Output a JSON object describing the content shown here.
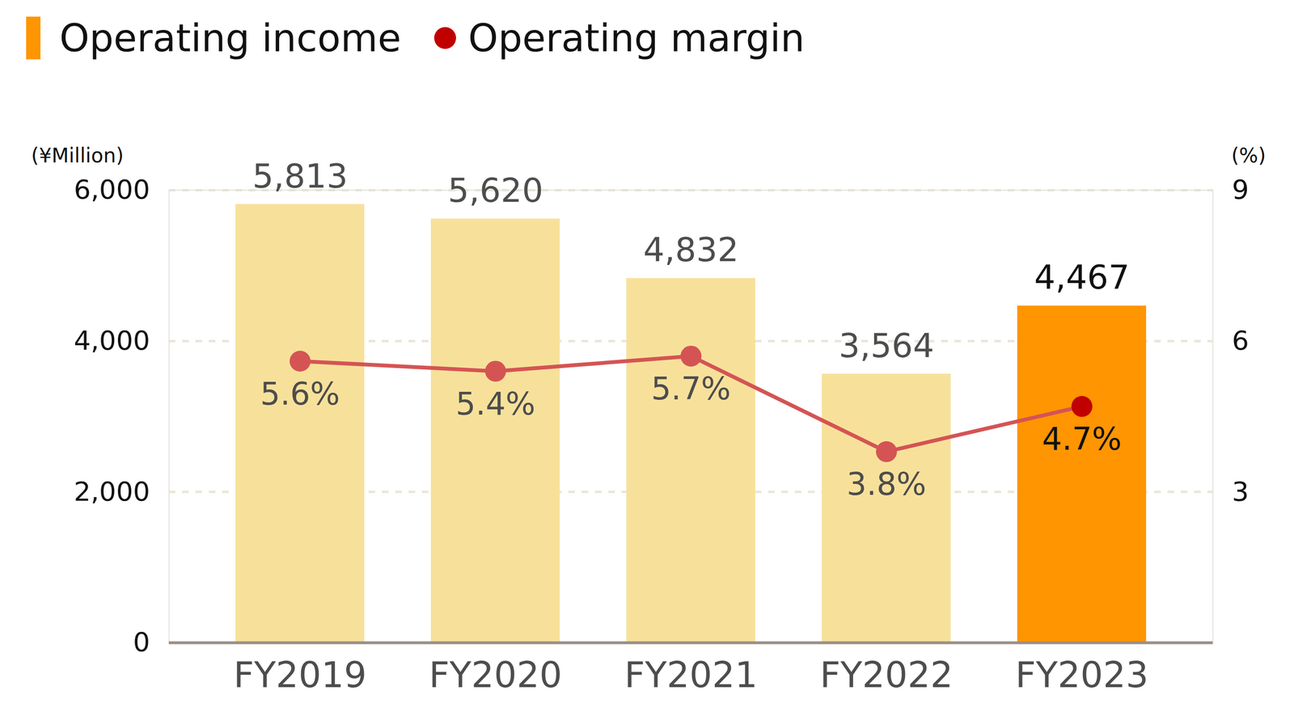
{
  "chart_data": {
    "type": "bar",
    "categories": [
      "FY2019",
      "FY2020",
      "FY2021",
      "FY2022",
      "FY2023"
    ],
    "series": [
      {
        "name": "Operating income",
        "type": "bar",
        "color": "#FF9500",
        "colors": [
          "#F7E19A",
          "#F7E19A",
          "#F7E19A",
          "#F7E19A",
          "#FF9500"
        ],
        "values": [
          5813,
          5620,
          4832,
          3564,
          4467
        ],
        "value_labels": [
          "5,813",
          "5,620",
          "4,832",
          "3,564",
          "4,467"
        ]
      },
      {
        "name": "Operating margin",
        "type": "line",
        "axis": "y2",
        "color": "#D45454",
        "colors": [
          "#D45454",
          "#D45454",
          "#D45454",
          "#D45454",
          "#C00000"
        ],
        "marker": "circle",
        "values": [
          5.6,
          5.4,
          5.7,
          3.8,
          4.7
        ],
        "value_labels": [
          "5.6%",
          "5.4%",
          "5.7%",
          "3.8%",
          "4.7%"
        ]
      }
    ],
    "y_label": "(¥Million)",
    "y2_label": "(%)",
    "ylim": [
      0,
      6000
    ],
    "yticks": [
      0,
      {
        "value": 2000,
        "label": "2,000"
      },
      {
        "value": 4000,
        "label": "4,000"
      },
      {
        "value": 6000,
        "label": "6,000"
      }
    ],
    "y2lim": [
      0,
      9
    ],
    "y2ticks": [
      3,
      6,
      9
    ],
    "grid": true,
    "legend": "top-left",
    "data_labels": true
  }
}
